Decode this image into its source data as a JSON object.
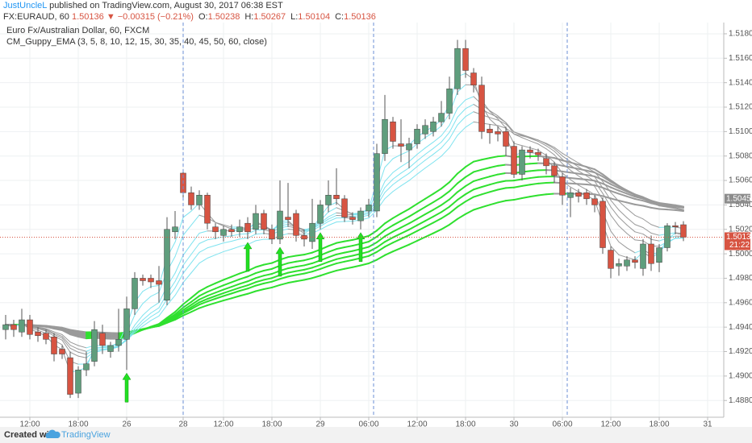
{
  "header": {
    "author": "JustUncleL",
    "published": " published on TradingView.com, August 30, 2017 06:38 EST",
    "symbol": "FX:EURAUD, 60",
    "last": "1.50136",
    "change": "▼ −0.00315 (−0.21%)",
    "ohlc": [
      {
        "label": "O:",
        "value": "1.50238"
      },
      {
        "label": "H:",
        "value": "1.50267"
      },
      {
        "label": "L:",
        "value": "1.50104"
      },
      {
        "label": "C:",
        "value": "1.50136"
      }
    ]
  },
  "footer": {
    "created": "Created with",
    "brand": "TradingView"
  },
  "chart_data": {
    "type": "candlestick",
    "title": "Euro Fx/Australian Dollar, 60, FXCM",
    "up_color": "#5f9e7d",
    "down_color": "#d75442",
    "wick_color": "#555555",
    "grid": true,
    "x": [
      0,
      1,
      2,
      3,
      4,
      5,
      6,
      7,
      8,
      9,
      10,
      11,
      12,
      13,
      14,
      15,
      16,
      17,
      18,
      19,
      20,
      21,
      22,
      23,
      24,
      25,
      26,
      27,
      28,
      29,
      30,
      31,
      32,
      33,
      34,
      35,
      36,
      37,
      38,
      39,
      40,
      41,
      42,
      43,
      44,
      45,
      46,
      47,
      48,
      49,
      50,
      51,
      52,
      53,
      54,
      55,
      56,
      57,
      58,
      59,
      60,
      61,
      62,
      63,
      64,
      65,
      66,
      67,
      68,
      69,
      70,
      71,
      72,
      73,
      74,
      75,
      76,
      77,
      78,
      79,
      80,
      81,
      82,
      83,
      84
    ],
    "open": [
      1.4938,
      1.4942,
      1.4936,
      1.4946,
      1.4936,
      1.4935,
      1.4932,
      1.4922,
      1.4915,
      1.4886,
      1.4905,
      1.4912,
      1.4935,
      1.492,
      1.4925,
      1.493,
      1.4955,
      1.498,
      1.498,
      1.4978,
      1.4962,
      1.5018,
      1.5066,
      1.505,
      1.504,
      1.5048,
      1.5022,
      1.5015,
      1.502,
      1.5018,
      1.5025,
      1.502,
      1.5033,
      1.502,
      1.5012,
      1.503,
      1.5033,
      1.5015,
      1.501,
      1.5025,
      1.504,
      1.5048,
      1.5045,
      1.503,
      1.5027,
      1.5035,
      1.5035,
      1.5082,
      1.5108,
      1.509,
      1.5085,
      1.509,
      1.5098,
      1.51,
      1.5108,
      1.5115,
      1.5135,
      1.5168,
      1.5148,
      1.5138,
      1.5102,
      1.51,
      1.51,
      1.5088,
      1.5065,
      1.5085,
      1.5083,
      1.5078,
      1.5072,
      1.5063,
      1.5046,
      1.505,
      1.505,
      1.5045,
      1.5043,
      1.5003,
      1.499,
      1.499,
      1.4995,
      1.4988,
      1.5008,
      1.4993,
      1.5005,
      1.5023,
      1.50238
    ],
    "high": [
      1.495,
      1.4946,
      1.4955,
      1.495,
      1.494,
      1.4938,
      1.4935,
      1.4925,
      1.492,
      1.4908,
      1.492,
      1.4945,
      1.4942,
      1.4928,
      1.4955,
      1.4965,
      1.4985,
      1.4983,
      1.4983,
      1.499,
      1.503,
      1.5035,
      1.5068,
      1.5055,
      1.5052,
      1.505,
      1.5025,
      1.5023,
      1.5024,
      1.5028,
      1.503,
      1.504,
      1.5036,
      1.5024,
      1.506,
      1.5058,
      1.5036,
      1.502,
      1.5045,
      1.5044,
      1.506,
      1.507,
      1.5048,
      1.5034,
      1.5038,
      1.5045,
      1.509,
      1.513,
      1.5112,
      1.511,
      1.5095,
      1.5106,
      1.511,
      1.5112,
      1.5125,
      1.5145,
      1.5175,
      1.5175,
      1.5152,
      1.5145,
      1.5106,
      1.5104,
      1.5104,
      1.5092,
      1.5088,
      1.5088,
      1.5086,
      1.5082,
      1.5075,
      1.5066,
      1.5054,
      1.5053,
      1.5053,
      1.5048,
      1.5046,
      1.5006,
      1.4996,
      1.4998,
      1.4998,
      1.5012,
      1.5015,
      1.5008,
      1.5025,
      1.5026,
      1.50267
    ],
    "low": [
      1.493,
      1.4932,
      1.4932,
      1.493,
      1.4928,
      1.4926,
      1.4912,
      1.4914,
      1.4882,
      1.4882,
      1.49,
      1.4908,
      1.4918,
      1.4915,
      1.492,
      1.4905,
      1.495,
      1.4974,
      1.4972,
      1.496,
      1.4958,
      1.5012,
      1.5046,
      1.5036,
      1.5036,
      1.502,
      1.5012,
      1.501,
      1.5014,
      1.5014,
      1.5012,
      1.5016,
      1.5016,
      1.5008,
      1.5008,
      1.5022,
      1.501,
      1.5006,
      1.5004,
      1.502,
      1.5034,
      1.504,
      1.5026,
      1.5024,
      1.502,
      1.503,
      1.503,
      1.5076,
      1.5086,
      1.5075,
      1.507,
      1.5086,
      1.5094,
      1.5096,
      1.5104,
      1.511,
      1.513,
      1.5144,
      1.5132,
      1.5094,
      1.509,
      1.5092,
      1.508,
      1.5062,
      1.506,
      1.5078,
      1.5076,
      1.5065,
      1.5058,
      1.504,
      1.503,
      1.5042,
      1.504,
      1.5034,
      1.5,
      1.498,
      1.4982,
      1.4986,
      1.4988,
      1.4982,
      1.4986,
      1.4985,
      1.5002,
      1.5016,
      1.50104
    ],
    "close": [
      1.4942,
      1.4938,
      1.4946,
      1.4934,
      1.4933,
      1.493,
      1.4918,
      1.4918,
      1.4885,
      1.4905,
      1.491,
      1.4938,
      1.4925,
      1.4925,
      1.493,
      1.4955,
      1.498,
      1.4978,
      1.4977,
      1.4975,
      1.502,
      1.5022,
      1.505,
      1.504,
      1.5048,
      1.5025,
      1.5018,
      1.502,
      1.5018,
      1.5022,
      1.5018,
      1.5033,
      1.502,
      1.5012,
      1.5035,
      1.5028,
      1.5015,
      1.5012,
      1.5025,
      1.504,
      1.5048,
      1.5045,
      1.503,
      1.5028,
      1.5035,
      1.504,
      1.5082,
      1.511,
      1.5092,
      1.5088,
      1.509,
      1.5102,
      1.5105,
      1.5108,
      1.5115,
      1.5135,
      1.5168,
      1.515,
      1.5138,
      1.51,
      1.5099,
      1.5098,
      1.5088,
      1.5065,
      1.5085,
      1.5083,
      1.5081,
      1.5072,
      1.5064,
      1.5048,
      1.505,
      1.5047,
      1.5045,
      1.504,
      1.5005,
      1.4988,
      1.4992,
      1.4995,
      1.4993,
      1.5008,
      1.4992,
      1.5005,
      1.5023,
      1.5022,
      1.50136
    ],
    "xlim": [
      -0.7,
      89
    ],
    "xticks": [
      {
        "value": 3,
        "label": "12:00"
      },
      {
        "value": 9,
        "label": "18:00"
      },
      {
        "value": 15,
        "label": "26"
      },
      {
        "value": 22,
        "label": "28"
      },
      {
        "value": 27,
        "label": "12:00"
      },
      {
        "value": 33,
        "label": "18:00"
      },
      {
        "value": 39,
        "label": "29"
      },
      {
        "value": 45,
        "label": "06:00"
      },
      {
        "value": 51,
        "label": "12:00"
      },
      {
        "value": 57,
        "label": "18:00"
      },
      {
        "value": 63,
        "label": "30"
      },
      {
        "value": 69,
        "label": "06:00"
      },
      {
        "value": 75,
        "label": "12:00"
      },
      {
        "value": 81,
        "label": "18:00"
      },
      {
        "value": 87,
        "label": "31"
      }
    ],
    "ylim": [
      1.48663,
      1.51892
    ],
    "yticks": [
      {
        "value": 1.488,
        "label": "1.48800"
      },
      {
        "value": 1.49,
        "label": "1.49000"
      },
      {
        "value": 1.492,
        "label": "1.49200"
      },
      {
        "value": 1.494,
        "label": "1.49400"
      },
      {
        "value": 1.496,
        "label": "1.49600"
      },
      {
        "value": 1.498,
        "label": "1.49800"
      },
      {
        "value": 1.5,
        "label": "1.50000"
      },
      {
        "value": 1.502,
        "label": "1.50200"
      },
      {
        "value": 1.504,
        "label": "1.50400"
      },
      {
        "value": 1.506,
        "label": "1.50600"
      },
      {
        "value": 1.508,
        "label": "1.50800"
      },
      {
        "value": 1.51,
        "label": "1.51000"
      },
      {
        "value": 1.512,
        "label": "1.51200"
      },
      {
        "value": 1.514,
        "label": "1.51400"
      },
      {
        "value": 1.516,
        "label": "1.51600"
      },
      {
        "value": 1.518,
        "label": "1.51800"
      }
    ],
    "price_lines": [
      {
        "value": 1.50451,
        "label": "1.50451",
        "color": "#8c8c8c"
      },
      {
        "value": 1.50136,
        "label": "1.50136",
        "color": "#d75442",
        "countdown": "21:22",
        "dotted": true
      }
    ],
    "indicator": {
      "name": "CM_Guppy_EMA (3, 5, 8, 10, 12, 15, 30, 35, 40, 45, 50, 60, close)",
      "fast_periods": [
        3,
        5,
        8,
        10,
        12,
        15
      ],
      "slow_periods": [
        30,
        35,
        40,
        45,
        50,
        60
      ],
      "fast_color": "#7fe3ef",
      "slow_color": "#2fe02f",
      "flat_color": "#9a9a9a",
      "arrows": [
        15,
        30,
        34,
        39,
        44
      ],
      "arrow_color": "#22e022"
    }
  }
}
